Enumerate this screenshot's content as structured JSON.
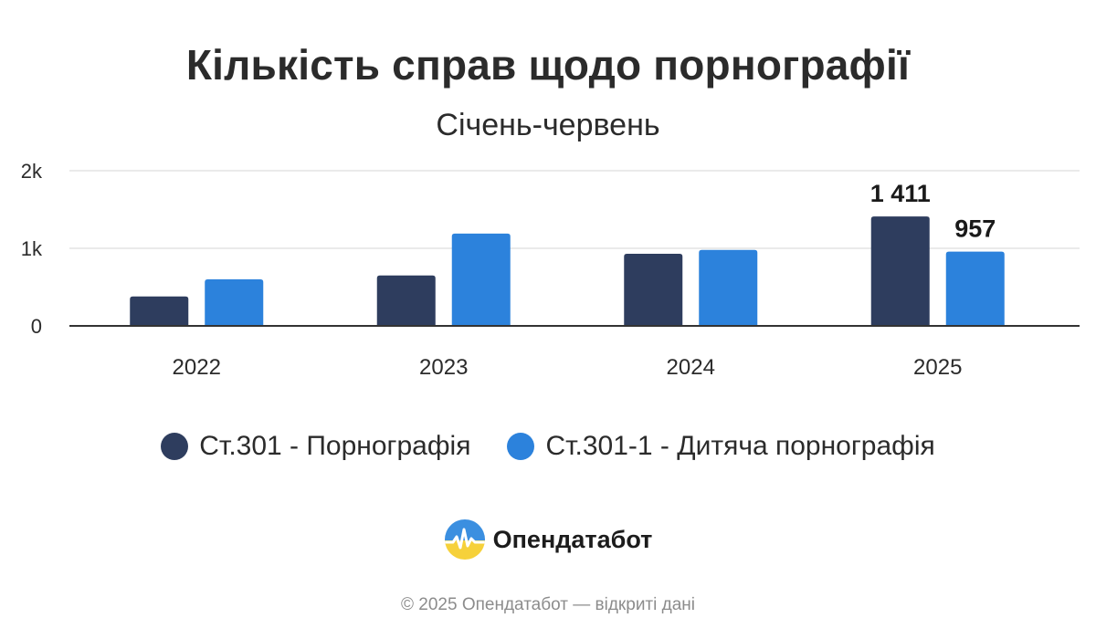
{
  "chart_data": {
    "type": "bar",
    "title": "Кількість справ щодо порнографії",
    "subtitle": "Січень-червень",
    "categories": [
      "2022",
      "2023",
      "2024",
      "2025"
    ],
    "series": [
      {
        "name": "Ст.301 - Порнографія",
        "color": "#2e3d5e",
        "values": [
          380,
          650,
          930,
          1411
        ]
      },
      {
        "name": "Ст.301-1 - Дитяча порнографія",
        "color": "#2c82dc",
        "values": [
          600,
          1190,
          980,
          957
        ]
      }
    ],
    "y_ticks": [
      {
        "value": 0,
        "label": "0"
      },
      {
        "value": 1000,
        "label": "1k"
      },
      {
        "value": 2000,
        "label": "2k"
      }
    ],
    "ylim": [
      0,
      2000
    ],
    "data_labels": [
      {
        "series": 0,
        "category": 3,
        "text": "1 411"
      },
      {
        "series": 1,
        "category": 3,
        "text": "957"
      }
    ],
    "grid": true,
    "legend_position": "bottom"
  },
  "brand": {
    "name": "Опендатабот",
    "logo_icon": "opendatabot-logo-icon"
  },
  "footer": {
    "text": "© 2025 Опендатабот — відкриті дані"
  }
}
